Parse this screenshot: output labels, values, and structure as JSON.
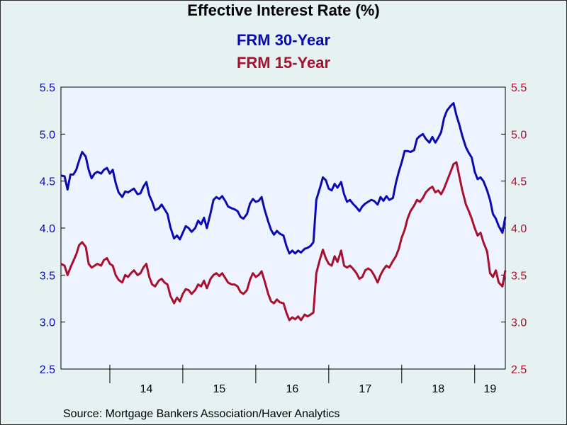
{
  "chart_data": {
    "type": "line",
    "title": "Effective Interest Rate (%)",
    "source": "Source:  Mortgage Bankers Association/Haver Analytics",
    "ylim": [
      2.5,
      5.5
    ],
    "y_ticks": [
      "5.5",
      "5.0",
      "4.5",
      "4.0",
      "3.5",
      "3.0",
      "2.5"
    ],
    "x_tick_labels": [
      "14",
      "15",
      "16",
      "17",
      "18",
      "19"
    ],
    "x_range": [
      2013.33,
      2019.42
    ],
    "grid": false,
    "legend_placement": "top-center",
    "series": [
      {
        "name": "FRM 30-Year",
        "color": "#0a0ab4",
        "x": [
          2013.33,
          2013.38,
          2013.42,
          2013.46,
          2013.5,
          2013.54,
          2013.58,
          2013.62,
          2013.67,
          2013.71,
          2013.75,
          2013.79,
          2013.83,
          2013.88,
          2013.92,
          2013.96,
          2014.0,
          2014.04,
          2014.08,
          2014.12,
          2014.17,
          2014.21,
          2014.25,
          2014.29,
          2014.33,
          2014.38,
          2014.42,
          2014.46,
          2014.5,
          2014.54,
          2014.58,
          2014.62,
          2014.67,
          2014.71,
          2014.75,
          2014.79,
          2014.83,
          2014.88,
          2014.92,
          2014.96,
          2015.0,
          2015.04,
          2015.08,
          2015.12,
          2015.17,
          2015.21,
          2015.25,
          2015.29,
          2015.33,
          2015.38,
          2015.42,
          2015.46,
          2015.5,
          2015.54,
          2015.58,
          2015.62,
          2015.67,
          2015.71,
          2015.75,
          2015.79,
          2015.83,
          2015.88,
          2015.92,
          2015.96,
          2016.0,
          2016.04,
          2016.08,
          2016.12,
          2016.17,
          2016.21,
          2016.25,
          2016.29,
          2016.33,
          2016.38,
          2016.42,
          2016.46,
          2016.5,
          2016.54,
          2016.58,
          2016.62,
          2016.67,
          2016.71,
          2016.75,
          2016.79,
          2016.83,
          2016.88,
          2016.92,
          2016.96,
          2017.0,
          2017.04,
          2017.08,
          2017.12,
          2017.17,
          2017.21,
          2017.25,
          2017.29,
          2017.33,
          2017.38,
          2017.42,
          2017.46,
          2017.5,
          2017.54,
          2017.58,
          2017.62,
          2017.67,
          2017.71,
          2017.75,
          2017.79,
          2017.83,
          2017.88,
          2017.92,
          2017.96,
          2018.0,
          2018.04,
          2018.08,
          2018.12,
          2018.17,
          2018.21,
          2018.25,
          2018.29,
          2018.33,
          2018.38,
          2018.42,
          2018.46,
          2018.5,
          2018.54,
          2018.58,
          2018.62,
          2018.67,
          2018.71,
          2018.75,
          2018.79,
          2018.83,
          2018.88,
          2018.92,
          2018.96,
          2019.0,
          2019.04,
          2019.08,
          2019.12,
          2019.17,
          2019.21,
          2019.25,
          2019.29,
          2019.33,
          2019.38,
          2019.42
        ],
        "values": [
          4.56,
          4.55,
          4.41,
          4.57,
          4.57,
          4.62,
          4.72,
          4.81,
          4.76,
          4.62,
          4.53,
          4.58,
          4.6,
          4.58,
          4.62,
          4.64,
          4.58,
          4.62,
          4.48,
          4.38,
          4.33,
          4.39,
          4.38,
          4.4,
          4.42,
          4.36,
          4.37,
          4.44,
          4.49,
          4.35,
          4.28,
          4.19,
          4.21,
          4.25,
          4.2,
          4.15,
          4.01,
          3.89,
          3.92,
          3.88,
          3.95,
          4.02,
          4.0,
          3.96,
          4.0,
          4.08,
          4.04,
          4.11,
          4.0,
          4.16,
          4.3,
          4.33,
          4.31,
          4.34,
          4.29,
          4.23,
          4.21,
          4.2,
          4.18,
          4.12,
          4.1,
          4.15,
          4.26,
          4.31,
          4.28,
          4.29,
          4.33,
          4.2,
          4.07,
          3.98,
          3.93,
          3.97,
          3.94,
          3.92,
          3.81,
          3.73,
          3.76,
          3.73,
          3.76,
          3.74,
          3.78,
          3.79,
          3.81,
          3.85,
          4.3,
          4.43,
          4.54,
          4.51,
          4.42,
          4.4,
          4.47,
          4.43,
          4.49,
          4.36,
          4.28,
          4.3,
          4.26,
          4.22,
          4.18,
          4.23,
          4.26,
          4.28,
          4.3,
          4.29,
          4.25,
          4.33,
          4.29,
          4.34,
          4.3,
          4.32,
          4.48,
          4.6,
          4.7,
          4.82,
          4.82,
          4.81,
          4.83,
          4.95,
          4.98,
          5.0,
          4.95,
          4.91,
          4.97,
          4.91,
          4.96,
          5.02,
          5.17,
          5.25,
          5.3,
          5.33,
          5.2,
          5.1,
          4.98,
          4.86,
          4.8,
          4.75,
          4.6,
          4.52,
          4.54,
          4.5,
          4.4,
          4.3,
          4.15,
          4.1,
          4.02,
          3.95,
          4.12
        ]
      },
      {
        "name": "FRM 15-Year",
        "color": "#a8102e",
        "x": [
          2013.33,
          2013.38,
          2013.42,
          2013.46,
          2013.5,
          2013.54,
          2013.58,
          2013.62,
          2013.67,
          2013.71,
          2013.75,
          2013.79,
          2013.83,
          2013.88,
          2013.92,
          2013.96,
          2014.0,
          2014.04,
          2014.08,
          2014.12,
          2014.17,
          2014.21,
          2014.25,
          2014.29,
          2014.33,
          2014.38,
          2014.42,
          2014.46,
          2014.5,
          2014.54,
          2014.58,
          2014.62,
          2014.67,
          2014.71,
          2014.75,
          2014.79,
          2014.83,
          2014.88,
          2014.92,
          2014.96,
          2015.0,
          2015.04,
          2015.08,
          2015.12,
          2015.17,
          2015.21,
          2015.25,
          2015.29,
          2015.33,
          2015.38,
          2015.42,
          2015.46,
          2015.5,
          2015.54,
          2015.58,
          2015.62,
          2015.67,
          2015.71,
          2015.75,
          2015.79,
          2015.83,
          2015.88,
          2015.92,
          2015.96,
          2016.0,
          2016.04,
          2016.08,
          2016.12,
          2016.17,
          2016.21,
          2016.25,
          2016.29,
          2016.33,
          2016.38,
          2016.42,
          2016.46,
          2016.5,
          2016.54,
          2016.58,
          2016.62,
          2016.67,
          2016.71,
          2016.75,
          2016.79,
          2016.83,
          2016.88,
          2016.92,
          2016.96,
          2017.0,
          2017.04,
          2017.08,
          2017.12,
          2017.17,
          2017.21,
          2017.25,
          2017.29,
          2017.33,
          2017.38,
          2017.42,
          2017.46,
          2017.5,
          2017.54,
          2017.58,
          2017.62,
          2017.67,
          2017.71,
          2017.75,
          2017.79,
          2017.83,
          2017.88,
          2017.92,
          2017.96,
          2018.0,
          2018.04,
          2018.08,
          2018.12,
          2018.17,
          2018.21,
          2018.25,
          2018.29,
          2018.33,
          2018.38,
          2018.42,
          2018.46,
          2018.5,
          2018.54,
          2018.58,
          2018.62,
          2018.67,
          2018.71,
          2018.75,
          2018.79,
          2018.83,
          2018.88,
          2018.92,
          2018.96,
          2019.0,
          2019.04,
          2019.08,
          2019.12,
          2019.17,
          2019.21,
          2019.25,
          2019.29,
          2019.33,
          2019.38,
          2019.42
        ],
        "values": [
          3.62,
          3.6,
          3.5,
          3.58,
          3.65,
          3.72,
          3.82,
          3.85,
          3.8,
          3.62,
          3.58,
          3.6,
          3.62,
          3.6,
          3.66,
          3.68,
          3.62,
          3.6,
          3.5,
          3.45,
          3.42,
          3.5,
          3.48,
          3.52,
          3.55,
          3.5,
          3.52,
          3.58,
          3.62,
          3.48,
          3.4,
          3.38,
          3.44,
          3.46,
          3.42,
          3.4,
          3.28,
          3.2,
          3.26,
          3.22,
          3.3,
          3.35,
          3.34,
          3.3,
          3.34,
          3.4,
          3.38,
          3.44,
          3.36,
          3.46,
          3.5,
          3.52,
          3.49,
          3.52,
          3.47,
          3.42,
          3.4,
          3.4,
          3.38,
          3.32,
          3.3,
          3.34,
          3.45,
          3.52,
          3.48,
          3.5,
          3.54,
          3.44,
          3.3,
          3.22,
          3.2,
          3.24,
          3.21,
          3.2,
          3.1,
          3.02,
          3.05,
          3.03,
          3.06,
          3.02,
          3.08,
          3.06,
          3.08,
          3.1,
          3.52,
          3.67,
          3.77,
          3.68,
          3.62,
          3.6,
          3.7,
          3.64,
          3.76,
          3.6,
          3.58,
          3.6,
          3.57,
          3.52,
          3.46,
          3.48,
          3.55,
          3.57,
          3.55,
          3.5,
          3.42,
          3.5,
          3.56,
          3.6,
          3.58,
          3.65,
          3.7,
          3.78,
          3.9,
          3.98,
          4.1,
          4.18,
          4.24,
          4.3,
          4.28,
          4.32,
          4.38,
          4.42,
          4.44,
          4.38,
          4.4,
          4.36,
          4.42,
          4.5,
          4.6,
          4.68,
          4.7,
          4.55,
          4.4,
          4.25,
          4.18,
          4.1,
          4.0,
          3.92,
          3.95,
          3.85,
          3.75,
          3.52,
          3.48,
          3.55,
          3.42,
          3.38,
          3.55
        ]
      }
    ]
  }
}
